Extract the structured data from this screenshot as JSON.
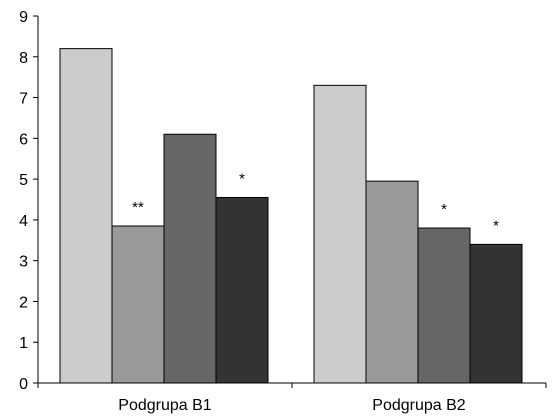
{
  "chart_data": {
    "type": "bar",
    "title": "",
    "xlabel": "",
    "ylabel": "",
    "categories": [
      "Podgrupa B1",
      "Podgrupa B2"
    ],
    "series": [
      {
        "values": [
          8.2,
          7.3
        ],
        "color": "#cccccc"
      },
      {
        "values": [
          3.85,
          4.95
        ],
        "color": "#999999"
      },
      {
        "values": [
          6.1,
          3.8
        ],
        "color": "#666666"
      },
      {
        "values": [
          4.55,
          3.4
        ],
        "color": "#333333"
      }
    ],
    "annotations": [
      {
        "category": 0,
        "series": 1,
        "text": "**"
      },
      {
        "category": 0,
        "series": 3,
        "text": "*"
      },
      {
        "category": 1,
        "series": 2,
        "text": "*"
      },
      {
        "category": 1,
        "series": 3,
        "text": "*"
      }
    ],
    "ylim": [
      0,
      9
    ],
    "yticks": [
      0,
      1,
      2,
      3,
      4,
      5,
      6,
      7,
      8,
      9
    ],
    "grid": false,
    "legend": "none"
  }
}
